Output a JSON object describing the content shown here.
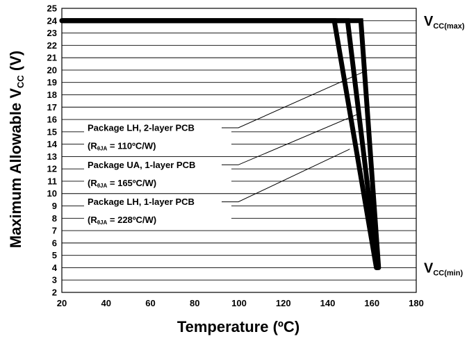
{
  "chart_data": {
    "type": "line",
    "title": "",
    "xlabel": "Temperature (ºC)",
    "ylabel_main": "Maximum Allowable V",
    "ylabel_sub": "CC",
    "ylabel_unit": " (V)",
    "xlim": [
      20,
      180
    ],
    "ylim": [
      2,
      25
    ],
    "x_ticks": [
      20,
      40,
      60,
      80,
      100,
      120,
      140,
      160,
      180
    ],
    "y_ticks": [
      2,
      3,
      4,
      5,
      6,
      7,
      8,
      9,
      10,
      11,
      12,
      13,
      14,
      15,
      16,
      17,
      18,
      19,
      20,
      21,
      22,
      23,
      24,
      25
    ],
    "grid": "horizontal",
    "series": [
      {
        "points": [
          [
            20,
            24
          ],
          [
            143,
            24
          ],
          [
            162,
            4
          ]
        ]
      },
      {
        "points": [
          [
            20,
            24
          ],
          [
            149,
            24
          ],
          [
            162.5,
            4
          ]
        ]
      },
      {
        "points": [
          [
            20,
            24
          ],
          [
            155,
            24
          ],
          [
            163,
            4
          ]
        ]
      }
    ],
    "annotations": [
      {
        "line1": "Package LH, 2-layer PCB",
        "line2_pre": "(R",
        "line2_sub": "θJA",
        "line2_post": " = 110ºC/W)",
        "label_y": 14.6,
        "target": [
          158,
          20
        ]
      },
      {
        "line1": "Package UA, 1-layer PCB",
        "line2_pre": "(R",
        "line2_sub": "θJA",
        "line2_post": " = 165ºC/W)",
        "label_y": 11.6,
        "target": [
          154.5,
          16.5
        ]
      },
      {
        "line1": "Package LH, 1-layer PCB",
        "line2_pre": "(R",
        "line2_sub": "θJA",
        "line2_post": " = 228ºC/W)",
        "label_y": 8.6,
        "target": [
          150,
          13.6
        ]
      }
    ],
    "reference_lines": [
      {
        "main": "V",
        "sub": "CC(max)",
        "y": 24
      },
      {
        "main": "V",
        "sub": "CC(min)",
        "y": 4
      }
    ],
    "colors": {
      "line": "#000000",
      "grid": "#000000",
      "background": "#ffffff"
    }
  }
}
